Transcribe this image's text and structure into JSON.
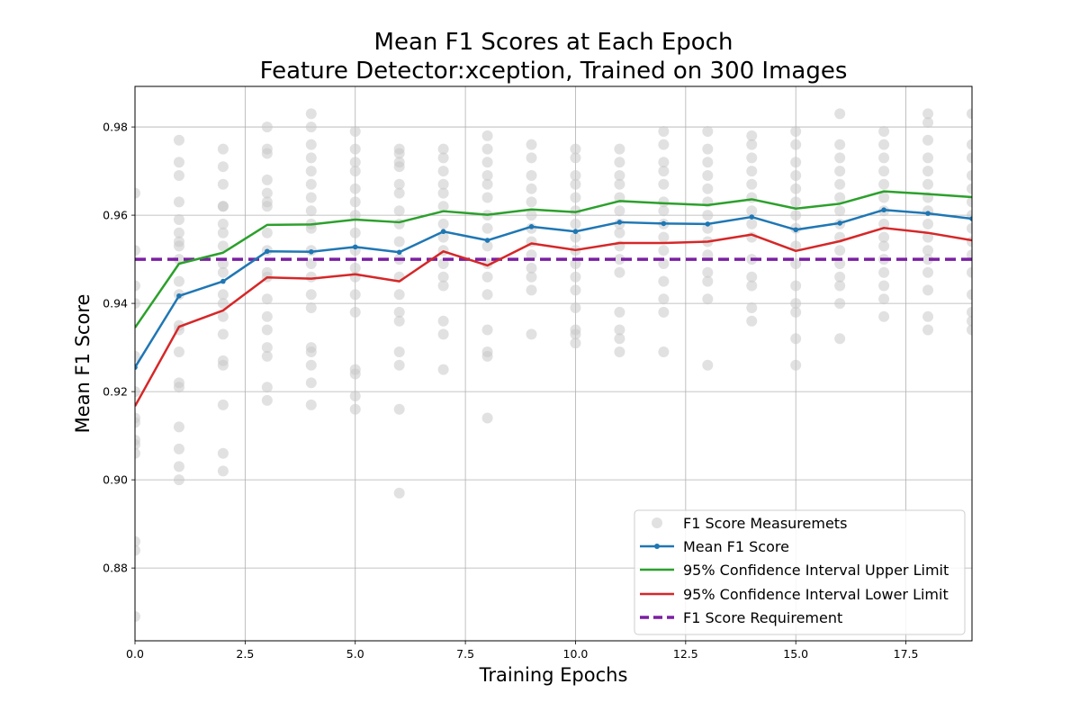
{
  "chart_data": {
    "type": "line",
    "title_lines": [
      "Mean F1 Scores at Each Epoch",
      "Feature Detector:xception, Trained on 300 Images"
    ],
    "xlabel": "Training Epochs",
    "ylabel": "Mean F1 Score",
    "xlim": [
      0,
      19
    ],
    "ylim": [
      0.8635,
      0.9892
    ],
    "xticks": [
      0.0,
      2.5,
      5.0,
      7.5,
      10.0,
      12.5,
      15.0,
      17.5
    ],
    "xtick_labels": [
      "0.0",
      "2.5",
      "5.0",
      "7.5",
      "10.0",
      "12.5",
      "15.0",
      "17.5"
    ],
    "yticks": [
      0.88,
      0.9,
      0.92,
      0.94,
      0.96,
      0.98
    ],
    "ytick_labels": [
      "0.88",
      "0.90",
      "0.92",
      "0.94",
      "0.96",
      "0.98"
    ],
    "grid": true,
    "legend_position": "bottom-right",
    "x": [
      0,
      1,
      2,
      3,
      4,
      5,
      6,
      7,
      8,
      9,
      10,
      11,
      12,
      13,
      14,
      15,
      16,
      17,
      18,
      19
    ],
    "series": [
      {
        "name": "Mean F1 Score",
        "color": "#1f77b4",
        "marker": true,
        "values": [
          0.9255,
          0.9417,
          0.945,
          0.9518,
          0.9517,
          0.9528,
          0.9516,
          0.9563,
          0.9543,
          0.9574,
          0.9563,
          0.9584,
          0.9581,
          0.958,
          0.9596,
          0.9567,
          0.9582,
          0.9612,
          0.9604,
          0.9592
        ]
      },
      {
        "name": "95% Confidence Interval Upper Limit",
        "color": "#2ca02c",
        "marker": false,
        "values": [
          0.9345,
          0.949,
          0.9515,
          0.9578,
          0.9579,
          0.959,
          0.9584,
          0.9609,
          0.9601,
          0.9613,
          0.9607,
          0.9632,
          0.9627,
          0.9623,
          0.9636,
          0.9615,
          0.9626,
          0.9654,
          0.9648,
          0.9641
        ]
      },
      {
        "name": "95% Confidence Interval Lower Limit",
        "color": "#d62728",
        "marker": false,
        "values": [
          0.9167,
          0.9347,
          0.9384,
          0.9459,
          0.9456,
          0.9466,
          0.945,
          0.9518,
          0.9486,
          0.9536,
          0.9521,
          0.9537,
          0.9537,
          0.954,
          0.9556,
          0.9519,
          0.9541,
          0.9571,
          0.956,
          0.9543
        ]
      }
    ],
    "requirement": {
      "name": "F1 Score Requirement",
      "value": 0.95,
      "color": "#7b1fa2",
      "style": "dashed"
    },
    "scatter": {
      "name": "F1 Score Measuremets",
      "color": "#c8c8c8",
      "points": [
        [
          0,
          0.965
        ],
        [
          0,
          0.952
        ],
        [
          0,
          0.944
        ],
        [
          0,
          0.94
        ],
        [
          0,
          0.928
        ],
        [
          0,
          0.92
        ],
        [
          0,
          0.914
        ],
        [
          0,
          0.913
        ],
        [
          0,
          0.909
        ],
        [
          0,
          0.908
        ],
        [
          0,
          0.906
        ],
        [
          0,
          0.886
        ],
        [
          0,
          0.884
        ],
        [
          0,
          0.869
        ],
        [
          1,
          0.977
        ],
        [
          1,
          0.972
        ],
        [
          1,
          0.969
        ],
        [
          1,
          0.963
        ],
        [
          1,
          0.959
        ],
        [
          1,
          0.956
        ],
        [
          1,
          0.954
        ],
        [
          1,
          0.953
        ],
        [
          1,
          0.95
        ],
        [
          1,
          0.945
        ],
        [
          1,
          0.942
        ],
        [
          1,
          0.935
        ],
        [
          1,
          0.934
        ],
        [
          1,
          0.929
        ],
        [
          1,
          0.922
        ],
        [
          1,
          0.921
        ],
        [
          1,
          0.912
        ],
        [
          1,
          0.907
        ],
        [
          1,
          0.903
        ],
        [
          1,
          0.9
        ],
        [
          2,
          0.975
        ],
        [
          2,
          0.971
        ],
        [
          2,
          0.967
        ],
        [
          2,
          0.962
        ],
        [
          2,
          0.962
        ],
        [
          2,
          0.958
        ],
        [
          2,
          0.956
        ],
        [
          2,
          0.953
        ],
        [
          2,
          0.949
        ],
        [
          2,
          0.947
        ],
        [
          2,
          0.942
        ],
        [
          2,
          0.94
        ],
        [
          2,
          0.937
        ],
        [
          2,
          0.933
        ],
        [
          2,
          0.927
        ],
        [
          2,
          0.926
        ],
        [
          2,
          0.917
        ],
        [
          2,
          0.906
        ],
        [
          2,
          0.902
        ],
        [
          3,
          0.98
        ],
        [
          3,
          0.975
        ],
        [
          3,
          0.974
        ],
        [
          3,
          0.968
        ],
        [
          3,
          0.965
        ],
        [
          3,
          0.963
        ],
        [
          3,
          0.962
        ],
        [
          3,
          0.956
        ],
        [
          3,
          0.952
        ],
        [
          3,
          0.947
        ],
        [
          3,
          0.946
        ],
        [
          3,
          0.941
        ],
        [
          3,
          0.937
        ],
        [
          3,
          0.934
        ],
        [
          3,
          0.93
        ],
        [
          3,
          0.928
        ],
        [
          3,
          0.921
        ],
        [
          3,
          0.918
        ],
        [
          4,
          0.983
        ],
        [
          4,
          0.98
        ],
        [
          4,
          0.976
        ],
        [
          4,
          0.973
        ],
        [
          4,
          0.97
        ],
        [
          4,
          0.967
        ],
        [
          4,
          0.964
        ],
        [
          4,
          0.961
        ],
        [
          4,
          0.958
        ],
        [
          4,
          0.957
        ],
        [
          4,
          0.952
        ],
        [
          4,
          0.949
        ],
        [
          4,
          0.946
        ],
        [
          4,
          0.942
        ],
        [
          4,
          0.939
        ],
        [
          4,
          0.93
        ],
        [
          4,
          0.929
        ],
        [
          4,
          0.926
        ],
        [
          4,
          0.922
        ],
        [
          4,
          0.917
        ],
        [
          5,
          0.979
        ],
        [
          5,
          0.975
        ],
        [
          5,
          0.972
        ],
        [
          5,
          0.97
        ],
        [
          5,
          0.966
        ],
        [
          5,
          0.963
        ],
        [
          5,
          0.96
        ],
        [
          5,
          0.956
        ],
        [
          5,
          0.952
        ],
        [
          5,
          0.948
        ],
        [
          5,
          0.946
        ],
        [
          5,
          0.942
        ],
        [
          5,
          0.938
        ],
        [
          5,
          0.925
        ],
        [
          5,
          0.924
        ],
        [
          5,
          0.919
        ],
        [
          5,
          0.916
        ],
        [
          6,
          0.975
        ],
        [
          6,
          0.974
        ],
        [
          6,
          0.972
        ],
        [
          6,
          0.971
        ],
        [
          6,
          0.967
        ],
        [
          6,
          0.965
        ],
        [
          6,
          0.961
        ],
        [
          6,
          0.958
        ],
        [
          6,
          0.954
        ],
        [
          6,
          0.95
        ],
        [
          6,
          0.946
        ],
        [
          6,
          0.942
        ],
        [
          6,
          0.938
        ],
        [
          6,
          0.936
        ],
        [
          6,
          0.929
        ],
        [
          6,
          0.926
        ],
        [
          6,
          0.916
        ],
        [
          6,
          0.897
        ],
        [
          7,
          0.975
        ],
        [
          7,
          0.973
        ],
        [
          7,
          0.97
        ],
        [
          7,
          0.967
        ],
        [
          7,
          0.965
        ],
        [
          7,
          0.962
        ],
        [
          7,
          0.958
        ],
        [
          7,
          0.955
        ],
        [
          7,
          0.952
        ],
        [
          7,
          0.949
        ],
        [
          7,
          0.946
        ],
        [
          7,
          0.944
        ],
        [
          7,
          0.936
        ],
        [
          7,
          0.933
        ],
        [
          7,
          0.925
        ],
        [
          8,
          0.978
        ],
        [
          8,
          0.975
        ],
        [
          8,
          0.972
        ],
        [
          8,
          0.969
        ],
        [
          8,
          0.967
        ],
        [
          8,
          0.964
        ],
        [
          8,
          0.96
        ],
        [
          8,
          0.957
        ],
        [
          8,
          0.953
        ],
        [
          8,
          0.949
        ],
        [
          8,
          0.946
        ],
        [
          8,
          0.942
        ],
        [
          8,
          0.934
        ],
        [
          8,
          0.929
        ],
        [
          8,
          0.928
        ],
        [
          8,
          0.914
        ],
        [
          9,
          0.976
        ],
        [
          9,
          0.973
        ],
        [
          9,
          0.969
        ],
        [
          9,
          0.966
        ],
        [
          9,
          0.963
        ],
        [
          9,
          0.96
        ],
        [
          9,
          0.957
        ],
        [
          9,
          0.954
        ],
        [
          9,
          0.951
        ],
        [
          9,
          0.948
        ],
        [
          9,
          0.946
        ],
        [
          9,
          0.943
        ],
        [
          9,
          0.933
        ],
        [
          10,
          0.975
        ],
        [
          10,
          0.973
        ],
        [
          10,
          0.969
        ],
        [
          10,
          0.967
        ],
        [
          10,
          0.964
        ],
        [
          10,
          0.961
        ],
        [
          10,
          0.958
        ],
        [
          10,
          0.955
        ],
        [
          10,
          0.952
        ],
        [
          10,
          0.949
        ],
        [
          10,
          0.946
        ],
        [
          10,
          0.943
        ],
        [
          10,
          0.939
        ],
        [
          10,
          0.934
        ],
        [
          10,
          0.933
        ],
        [
          10,
          0.931
        ],
        [
          11,
          0.975
        ],
        [
          11,
          0.972
        ],
        [
          11,
          0.969
        ],
        [
          11,
          0.967
        ],
        [
          11,
          0.964
        ],
        [
          11,
          0.961
        ],
        [
          11,
          0.958
        ],
        [
          11,
          0.956
        ],
        [
          11,
          0.953
        ],
        [
          11,
          0.95
        ],
        [
          11,
          0.947
        ],
        [
          11,
          0.938
        ],
        [
          11,
          0.934
        ],
        [
          11,
          0.932
        ],
        [
          11,
          0.929
        ],
        [
          12,
          0.979
        ],
        [
          12,
          0.976
        ],
        [
          12,
          0.972
        ],
        [
          12,
          0.97
        ],
        [
          12,
          0.967
        ],
        [
          12,
          0.963
        ],
        [
          12,
          0.961
        ],
        [
          12,
          0.958
        ],
        [
          12,
          0.955
        ],
        [
          12,
          0.952
        ],
        [
          12,
          0.949
        ],
        [
          12,
          0.945
        ],
        [
          12,
          0.941
        ],
        [
          12,
          0.938
        ],
        [
          12,
          0.929
        ],
        [
          13,
          0.979
        ],
        [
          13,
          0.975
        ],
        [
          13,
          0.972
        ],
        [
          13,
          0.969
        ],
        [
          13,
          0.966
        ],
        [
          13,
          0.963
        ],
        [
          13,
          0.96
        ],
        [
          13,
          0.957
        ],
        [
          13,
          0.954
        ],
        [
          13,
          0.951
        ],
        [
          13,
          0.947
        ],
        [
          13,
          0.945
        ],
        [
          13,
          0.941
        ],
        [
          13,
          0.926
        ],
        [
          14,
          0.978
        ],
        [
          14,
          0.976
        ],
        [
          14,
          0.973
        ],
        [
          14,
          0.97
        ],
        [
          14,
          0.967
        ],
        [
          14,
          0.964
        ],
        [
          14,
          0.961
        ],
        [
          14,
          0.958
        ],
        [
          14,
          0.955
        ],
        [
          14,
          0.95
        ],
        [
          14,
          0.946
        ],
        [
          14,
          0.944
        ],
        [
          14,
          0.939
        ],
        [
          14,
          0.936
        ],
        [
          15,
          0.979
        ],
        [
          15,
          0.976
        ],
        [
          15,
          0.972
        ],
        [
          15,
          0.969
        ],
        [
          15,
          0.966
        ],
        [
          15,
          0.963
        ],
        [
          15,
          0.96
        ],
        [
          15,
          0.957
        ],
        [
          15,
          0.953
        ],
        [
          15,
          0.949
        ],
        [
          15,
          0.944
        ],
        [
          15,
          0.94
        ],
        [
          15,
          0.938
        ],
        [
          15,
          0.932
        ],
        [
          15,
          0.926
        ],
        [
          16,
          0.983
        ],
        [
          16,
          0.976
        ],
        [
          16,
          0.973
        ],
        [
          16,
          0.97
        ],
        [
          16,
          0.967
        ],
        [
          16,
          0.964
        ],
        [
          16,
          0.961
        ],
        [
          16,
          0.958
        ],
        [
          16,
          0.955
        ],
        [
          16,
          0.952
        ],
        [
          16,
          0.949
        ],
        [
          16,
          0.946
        ],
        [
          16,
          0.944
        ],
        [
          16,
          0.94
        ],
        [
          16,
          0.932
        ],
        [
          17,
          0.979
        ],
        [
          17,
          0.976
        ],
        [
          17,
          0.973
        ],
        [
          17,
          0.97
        ],
        [
          17,
          0.967
        ],
        [
          17,
          0.964
        ],
        [
          17,
          0.961
        ],
        [
          17,
          0.958
        ],
        [
          17,
          0.955
        ],
        [
          17,
          0.953
        ],
        [
          17,
          0.95
        ],
        [
          17,
          0.947
        ],
        [
          17,
          0.944
        ],
        [
          17,
          0.941
        ],
        [
          17,
          0.937
        ],
        [
          18,
          0.983
        ],
        [
          18,
          0.981
        ],
        [
          18,
          0.977
        ],
        [
          18,
          0.973
        ],
        [
          18,
          0.97
        ],
        [
          18,
          0.967
        ],
        [
          18,
          0.964
        ],
        [
          18,
          0.961
        ],
        [
          18,
          0.958
        ],
        [
          18,
          0.955
        ],
        [
          18,
          0.952
        ],
        [
          18,
          0.95
        ],
        [
          18,
          0.947
        ],
        [
          18,
          0.943
        ],
        [
          18,
          0.937
        ],
        [
          18,
          0.934
        ],
        [
          19,
          0.983
        ],
        [
          19,
          0.976
        ],
        [
          19,
          0.973
        ],
        [
          19,
          0.969
        ],
        [
          19,
          0.966
        ],
        [
          19,
          0.963
        ],
        [
          19,
          0.96
        ],
        [
          19,
          0.957
        ],
        [
          19,
          0.954
        ],
        [
          19,
          0.951
        ],
        [
          19,
          0.947
        ],
        [
          19,
          0.942
        ],
        [
          19,
          0.938
        ],
        [
          19,
          0.936
        ],
        [
          19,
          0.934
        ]
      ]
    }
  }
}
